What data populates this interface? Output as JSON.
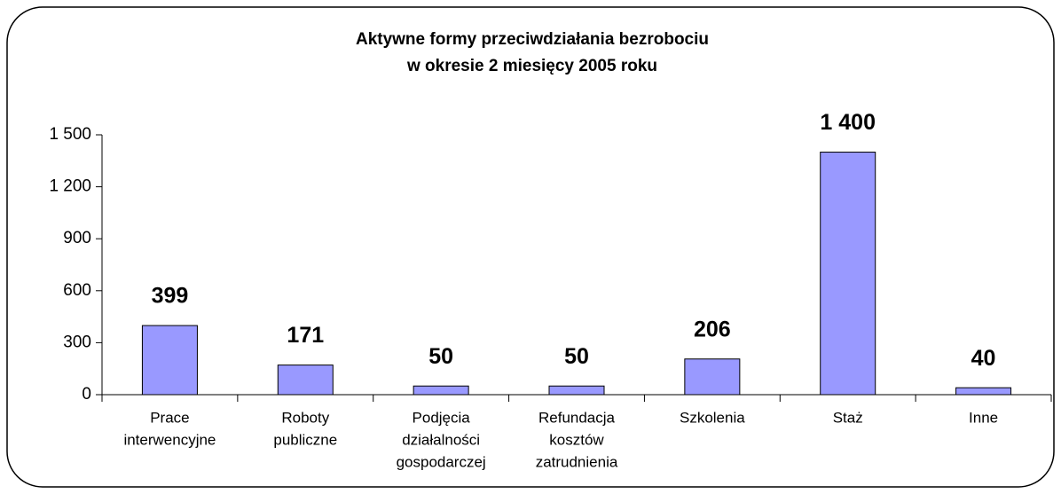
{
  "chart_data": {
    "type": "bar",
    "title": [
      "Aktywne formy przeciwdziałania bezrobociu",
      "w okresie 2 miesięcy 2005 roku"
    ],
    "categories": [
      [
        "Prace",
        "interwencyjne"
      ],
      [
        "Roboty",
        "publiczne"
      ],
      [
        "Podjęcia",
        "działalności",
        "gospodarczej"
      ],
      [
        "Refundacja",
        "kosztów",
        "zatrudnienia"
      ],
      [
        "Szkolenia"
      ],
      [
        "Staż"
      ],
      [
        "Inne"
      ]
    ],
    "values": [
      399,
      171,
      50,
      50,
      206,
      1400,
      40
    ],
    "value_labels": [
      "399",
      "171",
      "50",
      "50",
      "206",
      "1 400",
      "40"
    ],
    "color": "#9999ff",
    "ylim": [
      0,
      1500
    ],
    "yticks": [
      0,
      300,
      600,
      900,
      {
        "value": 1200,
        "label": "1 200"
      },
      {
        "value": 1500,
        "label": "1 500"
      }
    ]
  }
}
